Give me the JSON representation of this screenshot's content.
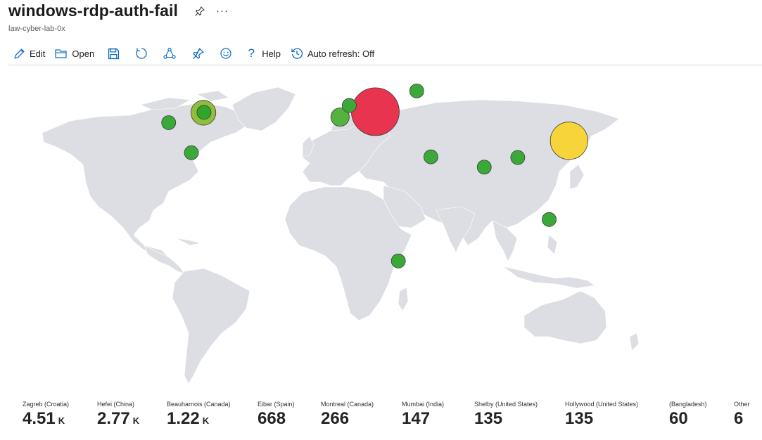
{
  "header": {
    "title": "windows-rdp-auth-fail",
    "subtitle": "law-cyber-lab-0x",
    "more_label": "···"
  },
  "toolbar": {
    "edit_label": "Edit",
    "open_label": "Open",
    "help_label": "Help",
    "auto_refresh_label": "Auto refresh: Off"
  },
  "chart_data": {
    "type": "bubble-map",
    "title": "",
    "points": [
      {
        "name": "Zagreb (Croatia)",
        "value": "4.51",
        "unit": "K",
        "lat": 45.8,
        "lon": 15.98,
        "color": "#e8344e"
      },
      {
        "name": "Hefei (China)",
        "value": "2.77",
        "unit": "K",
        "lat": 31.8,
        "lon": 117.2,
        "color": "#f6d43a"
      },
      {
        "name": "Beauharnois (Canada)",
        "value": "1.22",
        "unit": "K",
        "lat": 45.3,
        "lon": -73.87,
        "color": "#8fbf3a"
      },
      {
        "name": "Eibar (Spain)",
        "value": "668",
        "unit": "",
        "lat": 43.2,
        "lon": -2.47,
        "color": "#54b33d"
      },
      {
        "name": "Montreal (Canada)",
        "value": "266",
        "unit": "",
        "lat": 45.5,
        "lon": -73.57,
        "color": "#2fa52c"
      },
      {
        "name": "Mumbai (India)",
        "value": "147",
        "unit": "",
        "lat": 19.07,
        "lon": 72.88,
        "color": "#3aa93a"
      },
      {
        "name": "Shelby (United States)",
        "value": "135",
        "unit": "",
        "lat": 40.5,
        "lon": -92.0,
        "color": "#3aa93a"
      },
      {
        "name": "Hollywood (United States)",
        "value": "135",
        "unit": "",
        "lat": 26.0,
        "lon": -80.15,
        "color": "#3aa93a"
      },
      {
        "name": "(Bangladesh)",
        "value": "60",
        "unit": "",
        "lat": 23.7,
        "lon": 90.4,
        "color": "#3aa93a"
      },
      {
        "name": "",
        "value": "",
        "unit": "",
        "lat": 55.8,
        "lon": 37.6,
        "color": "#3aa93a"
      },
      {
        "name": "",
        "value": "",
        "unit": "",
        "lat": 48.8,
        "lon": 2.35,
        "color": "#3aa93a"
      },
      {
        "name": "",
        "value": "",
        "unit": "",
        "lat": 24.0,
        "lon": 45.0,
        "color": "#3aa93a"
      },
      {
        "name": "",
        "value": "",
        "unit": "",
        "lat": -26.2,
        "lon": 28.0,
        "color": "#3aa93a"
      },
      {
        "name": "",
        "value": "",
        "unit": "",
        "lat": -6.2,
        "lon": 106.8,
        "color": "#3aa93a"
      }
    ],
    "legend": [
      {
        "label": "Zagreb (Croatia)",
        "value": "4.51",
        "unit": "K"
      },
      {
        "label": "Hefei (China)",
        "value": "2.77",
        "unit": "K"
      },
      {
        "label": "Beauharnois (Canada)",
        "value": "1.22",
        "unit": "K"
      },
      {
        "label": "Eibar (Spain)",
        "value": "668",
        "unit": ""
      },
      {
        "label": "Montreal (Canada)",
        "value": "266",
        "unit": ""
      },
      {
        "label": "Mumbai (India)",
        "value": "147",
        "unit": ""
      },
      {
        "label": "Shelby (United States)",
        "value": "135",
        "unit": ""
      },
      {
        "label": "Hollywood (United States)",
        "value": "135",
        "unit": ""
      },
      {
        "label": "(Bangladesh)",
        "value": "60",
        "unit": ""
      },
      {
        "label": "Other",
        "value": "6",
        "unit": ""
      }
    ]
  },
  "colors": {
    "land": "#dcdee3",
    "ocean": "#ffffff",
    "accent": "#0f6cbd"
  }
}
